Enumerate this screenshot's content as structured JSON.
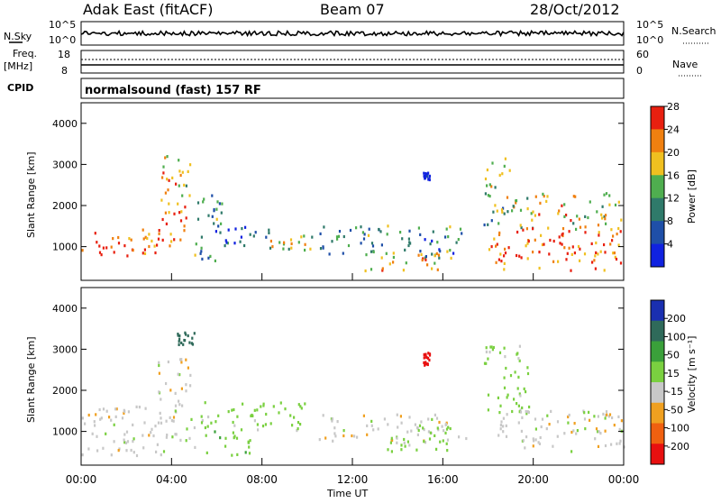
{
  "header": {
    "station": "Adak East (fitACF)",
    "beam": "Beam 07",
    "date": "28/Oct/2012"
  },
  "strips": {
    "nsky_label": "N.Sky",
    "nsearch_label": "N.Search",
    "noise_ticks": [
      "10^5",
      "10^0"
    ],
    "freq_label": "Freq.",
    "freq_unit": "[MHz]",
    "freq_ticks": [
      "18",
      "8"
    ],
    "nave_label": "Nave",
    "nave_ticks": [
      "60",
      "0"
    ],
    "cpid_label": "CPID",
    "cpid_text": "normalsound (fast) 157 RF"
  },
  "x_axis": {
    "label": "Time UT",
    "ticks": [
      "00:00",
      "04:00",
      "08:00",
      "12:00",
      "16:00",
      "20:00",
      "00:00"
    ]
  },
  "chart_data": [
    {
      "type": "heatmap",
      "name": "power",
      "ylabel": "Slant Range [km]",
      "yticks": [
        "1000",
        "2000",
        "3000",
        "4000"
      ],
      "y_values": [
        1000,
        2000,
        3000,
        4000
      ],
      "ylim": [
        180,
        4500
      ],
      "xlim_hours": [
        0,
        24
      ],
      "colorbar_label": "Power [dB]",
      "colorbar_ticks": [
        "4",
        "8",
        "12",
        "16",
        "20",
        "24",
        "28"
      ],
      "colorbar_colors": [
        "#1022e0",
        "#1f4fa8",
        "#2f7a6a",
        "#4fae4f",
        "#f0c020",
        "#f08010",
        "#e82010"
      ],
      "regions": [
        {
          "t": [
            0.0,
            3.4
          ],
          "r": [
            700,
            1400
          ],
          "level": 28
        },
        {
          "t": [
            3.4,
            4.8
          ],
          "r": [
            1000,
            2200
          ],
          "level": 26
        },
        {
          "t": [
            3.2,
            4.8
          ],
          "r": [
            2200,
            3200
          ],
          "level": 22
        },
        {
          "t": [
            5.0,
            6.2
          ],
          "r": [
            600,
            2400
          ],
          "level": 14
        },
        {
          "t": [
            6.2,
            8.3
          ],
          "r": [
            1000,
            1500
          ],
          "level": 10
        },
        {
          "t": [
            8.3,
            10.3
          ],
          "r": [
            900,
            1300
          ],
          "level": 20
        },
        {
          "t": [
            10.5,
            16.8
          ],
          "r": [
            700,
            1500
          ],
          "level": 14
        },
        {
          "t": [
            12.5,
            16.0
          ],
          "r": [
            400,
            900
          ],
          "level": 22
        },
        {
          "t": [
            15.1,
            15.4
          ],
          "r": [
            2600,
            2800
          ],
          "level": 5
        },
        {
          "t": [
            17.8,
            19.0
          ],
          "r": [
            1500,
            3200
          ],
          "level": 18
        },
        {
          "t": [
            18.0,
            24.0
          ],
          "r": [
            400,
            1400
          ],
          "level": 28
        },
        {
          "t": [
            19.0,
            24.0
          ],
          "r": [
            1400,
            2300
          ],
          "level": 22
        }
      ]
    },
    {
      "type": "heatmap",
      "name": "velocity",
      "ylabel": "Slant Range [km]",
      "yticks": [
        "1000",
        "2000",
        "3000",
        "4000"
      ],
      "y_values": [
        1000,
        2000,
        3000,
        4000
      ],
      "ylim": [
        180,
        4500
      ],
      "xlim_hours": [
        0,
        24
      ],
      "colorbar_label": "Velocity [m s⁻¹]",
      "colorbar_ticks": [
        "200",
        "100",
        "50",
        "15",
        "-15",
        "-50",
        "-100",
        "-200"
      ],
      "colorbar_colors": [
        "#1a2fb0",
        "#2f6a5a",
        "#3aa03a",
        "#7ad040",
        "#c8c8c8",
        "#f0a020",
        "#f06010",
        "#e81010"
      ],
      "regions": [
        {
          "t": [
            0.0,
            5.0
          ],
          "r": [
            400,
            1600
          ],
          "level": 0
        },
        {
          "t": [
            3.2,
            4.8
          ],
          "r": [
            1600,
            2800
          ],
          "level": 0
        },
        {
          "t": [
            4.2,
            5.0
          ],
          "r": [
            3100,
            3400
          ],
          "level": 150
        },
        {
          "t": [
            5.2,
            7.5
          ],
          "r": [
            400,
            1000
          ],
          "level": 40
        },
        {
          "t": [
            5.2,
            10.2
          ],
          "r": [
            1000,
            1700
          ],
          "level": 30
        },
        {
          "t": [
            10.5,
            16.8
          ],
          "r": [
            700,
            1400
          ],
          "level": 0
        },
        {
          "t": [
            13.5,
            17.0
          ],
          "r": [
            500,
            1100
          ],
          "level": 30
        },
        {
          "t": [
            15.1,
            15.4
          ],
          "r": [
            2600,
            2900
          ],
          "level": -150
        },
        {
          "t": [
            17.8,
            19.8
          ],
          "r": [
            1400,
            3100
          ],
          "level": 30
        },
        {
          "t": [
            18.0,
            24.0
          ],
          "r": [
            500,
            1500
          ],
          "level": 0
        }
      ]
    }
  ]
}
